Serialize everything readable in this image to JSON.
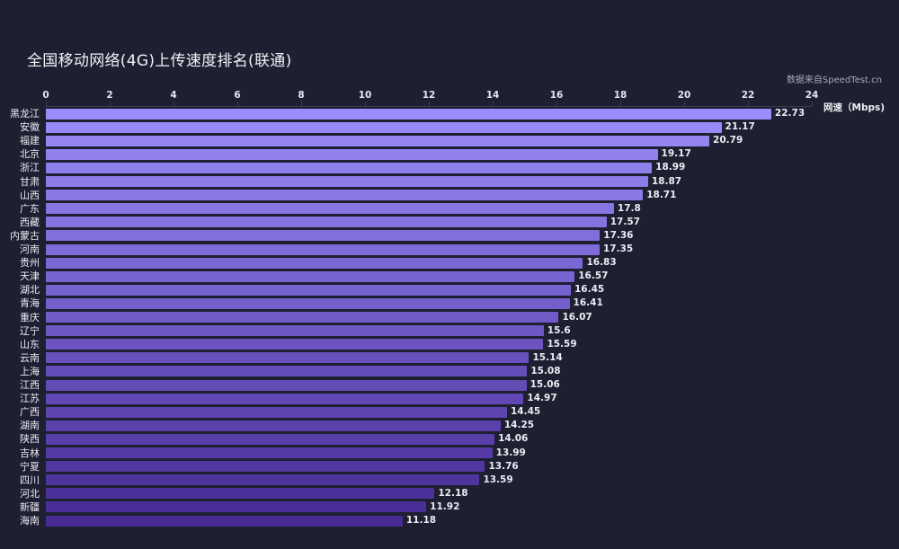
{
  "chart_data": {
    "type": "bar",
    "orientation": "horizontal",
    "title": "全国移动网络(4G)上传速度排名(联通)",
    "subtitle": "数据来自SpeedTest.cn",
    "xlabel": "网速（Mbps)",
    "ylabel": "",
    "xlim": [
      0,
      24
    ],
    "x_ticks": [
      0,
      2,
      4,
      6,
      8,
      10,
      12,
      14,
      16,
      18,
      20,
      22,
      24
    ],
    "x_axis_position": "top",
    "grid": false,
    "legend": null,
    "categories": [
      "黑龙江",
      "安徽",
      "福建",
      "北京",
      "浙江",
      "甘肃",
      "山西",
      "广东",
      "西藏",
      "内蒙古",
      "河南",
      "贵州",
      "天津",
      "湖北",
      "青海",
      "重庆",
      "辽宁",
      "山东",
      "云南",
      "上海",
      "江西",
      "江苏",
      "广西",
      "湖南",
      "陕西",
      "吉林",
      "宁夏",
      "四川",
      "河北",
      "新疆",
      "海南"
    ],
    "values": [
      22.73,
      21.17,
      20.79,
      19.17,
      18.99,
      18.87,
      18.71,
      17.8,
      17.57,
      17.36,
      17.35,
      16.83,
      16.57,
      16.45,
      16.41,
      16.07,
      15.6,
      15.59,
      15.14,
      15.08,
      15.06,
      14.97,
      14.45,
      14.25,
      14.06,
      13.99,
      13.76,
      13.59,
      12.18,
      11.92,
      11.18
    ],
    "value_labels": [
      "22.73",
      "21.17",
      "20.79",
      "19.17",
      "18.99",
      "18.87",
      "18.71",
      "17.8",
      "17.57",
      "17.36",
      "17.35",
      "16.83",
      "16.57",
      "16.45",
      "16.41",
      "16.07",
      "15.6",
      "15.59",
      "15.14",
      "15.08",
      "15.06",
      "14.97",
      "14.45",
      "14.25",
      "14.06",
      "13.99",
      "13.76",
      "13.59",
      "12.18",
      "11.92",
      "11.18"
    ],
    "colors": {
      "top": "#9a8cfa",
      "bottom": "#472a94",
      "background": "#1e1f30"
    }
  },
  "header": {
    "title": "全国移动网络(4G)上传速度排名(联通)",
    "source": "数据来自SpeedTest.cn",
    "axis_name": "网速（Mbps)"
  }
}
